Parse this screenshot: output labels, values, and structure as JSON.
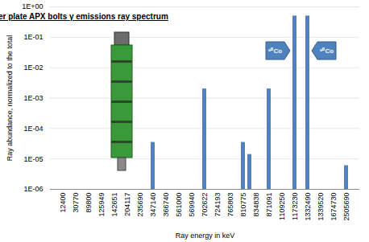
{
  "chart_data": {
    "type": "bar",
    "title": "Skeleton upper plate APX bolts γ emissions ray spectrum",
    "x_label": "Ray energy in keV",
    "y_label": "Ray abundance, normalized to the total",
    "categories": [
      "12400",
      null,
      "30770",
      null,
      "89800",
      null,
      "125949",
      null,
      "142651",
      null,
      "204117",
      null,
      "235690",
      null,
      "347140",
      null,
      "366740",
      null,
      "561000",
      null,
      "569940",
      null,
      "702622",
      null,
      "724193",
      null,
      "765803",
      null,
      "810775",
      null,
      "834838",
      null,
      "871091",
      null,
      "1109250",
      null,
      "1173230",
      null,
      "1332490",
      null,
      "1339520",
      null,
      "1674730",
      null,
      "2505690"
    ],
    "values": [
      null,
      null,
      null,
      null,
      null,
      null,
      null,
      null,
      null,
      null,
      null,
      null,
      null,
      null,
      3.5e-05,
      null,
      null,
      null,
      null,
      null,
      null,
      null,
      0.002,
      null,
      null,
      null,
      null,
      null,
      3.5e-05,
      1.4e-05,
      null,
      null,
      0.002,
      null,
      null,
      null,
      0.5,
      null,
      0.5,
      null,
      null,
      null,
      null,
      null,
      6e-06
    ],
    "color": "#4f81bd",
    "log": "y",
    "ylim": [
      1e-06,
      1
    ],
    "yticks": [
      {
        "value": 1e-06,
        "label": "1E-06"
      },
      {
        "value": 1e-05,
        "label": "1E-05"
      },
      {
        "value": 0.0001,
        "label": "1E-04"
      },
      {
        "value": 0.001,
        "label": "1E-03"
      },
      {
        "value": 0.01,
        "label": "1E-02"
      },
      {
        "value": 0.1,
        "label": "1E-01"
      },
      {
        "value": 1,
        "label": "1E+00"
      }
    ],
    "grid": true,
    "annotations": [
      {
        "text": "⁶⁰Co",
        "target": "1173230"
      },
      {
        "text": "⁶⁰Co",
        "target": "1332490"
      }
    ]
  }
}
